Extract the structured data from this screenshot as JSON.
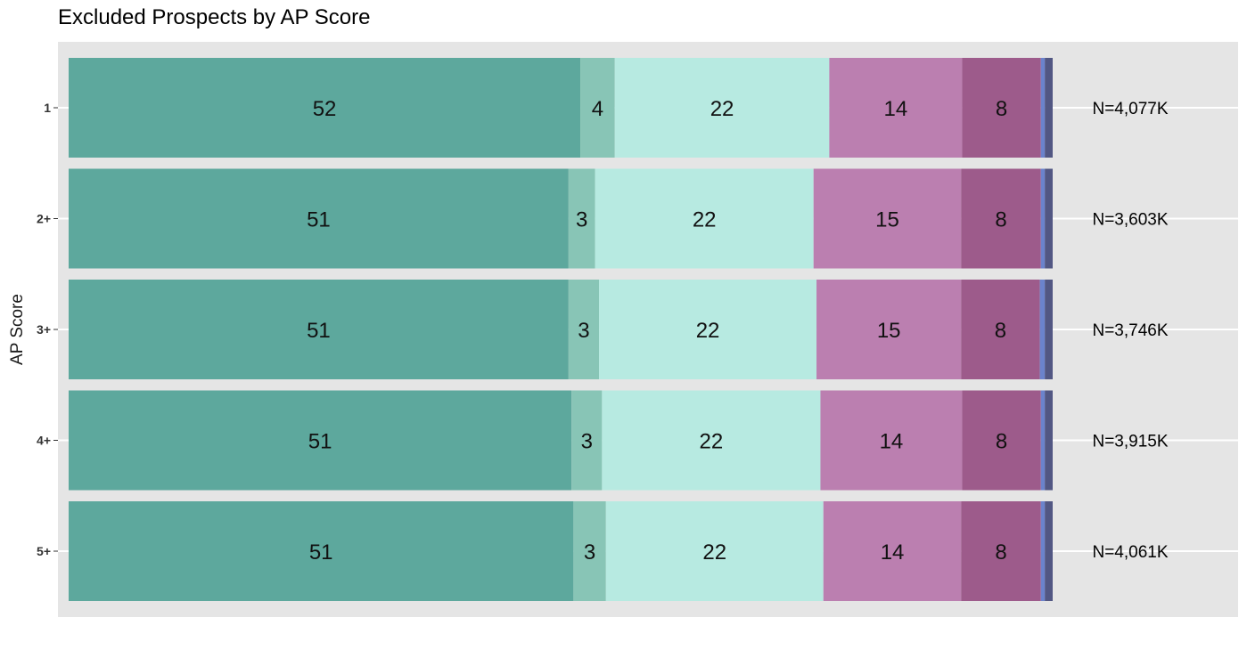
{
  "chart_data": {
    "type": "bar",
    "orientation": "horizontal",
    "stacked": true,
    "title": "Excluded Prospects by AP Score",
    "ylabel": "AP Score",
    "categories": [
      "1",
      "2+",
      "3+",
      "4+",
      "5+"
    ],
    "bar_labels": [
      [
        "52",
        "4",
        "22",
        "14",
        "8",
        "",
        ""
      ],
      [
        "51",
        "3",
        "22",
        "15",
        "8",
        "",
        ""
      ],
      [
        "51",
        "3",
        "22",
        "15",
        "8",
        "",
        ""
      ],
      [
        "51",
        "3",
        "22",
        "14",
        "8",
        "",
        ""
      ],
      [
        "51",
        "3",
        "22",
        "14",
        "8",
        "",
        ""
      ]
    ],
    "series": [
      {
        "color": "#5da89d",
        "values": [
          52.0,
          50.8,
          50.8,
          51.1,
          51.3
        ]
      },
      {
        "color": "#88c5b6",
        "values": [
          3.5,
          2.7,
          3.1,
          3.1,
          3.3
        ]
      },
      {
        "color": "#b7eae1",
        "values": [
          21.8,
          22.2,
          22.1,
          22.2,
          22.1
        ]
      },
      {
        "color": "#bb7fb0",
        "values": [
          13.5,
          15.0,
          14.7,
          14.4,
          14.0
        ]
      },
      {
        "color": "#9d5b8b",
        "values": [
          8.0,
          8.1,
          8.0,
          8.0,
          8.1
        ]
      },
      {
        "color": "#6b83cc",
        "values": [
          0.4,
          0.4,
          0.5,
          0.4,
          0.4
        ]
      },
      {
        "color": "#525783",
        "values": [
          0.8,
          0.8,
          0.8,
          0.8,
          0.8
        ]
      }
    ],
    "n_labels": [
      "N=4,077K",
      "N=3,603K",
      "N=3,746K",
      "N=3,915K",
      "N=4,061K"
    ],
    "xlim": [
      0,
      100
    ],
    "panel_background": "#e5e5e5",
    "gridlines": true,
    "legend": "none"
  }
}
